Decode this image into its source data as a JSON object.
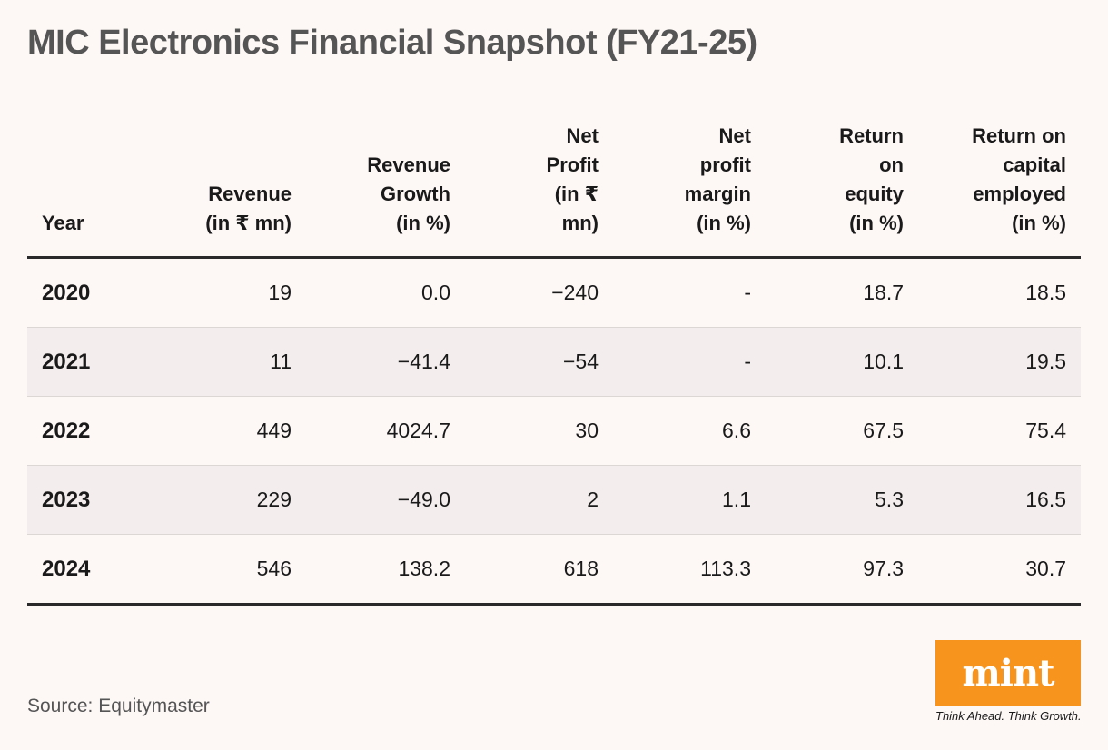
{
  "title": "MIC Electronics Financial Snapshot (FY21-25)",
  "source": "Source: Equitymaster",
  "logo": {
    "text": "mint",
    "tagline": "Think Ahead. Think Growth.",
    "color": "#f7941d"
  },
  "chart_data": {
    "type": "table",
    "title": "MIC Electronics Financial Snapshot (FY21-25)",
    "columns": [
      {
        "lines": [
          "Year"
        ]
      },
      {
        "lines": [
          "Revenue",
          "(in ₹ mn)"
        ]
      },
      {
        "lines": [
          "Revenue",
          "Growth",
          "(in %)"
        ]
      },
      {
        "lines": [
          "Net",
          "Profit",
          "(in ₹",
          "mn)"
        ]
      },
      {
        "lines": [
          "Net",
          "profit",
          "margin",
          "(in %)"
        ]
      },
      {
        "lines": [
          "Return",
          "on",
          "equity",
          "(in %)"
        ]
      },
      {
        "lines": [
          "Return on",
          "capital",
          "employed",
          "(in %)"
        ]
      }
    ],
    "rows": [
      [
        "2020",
        "19",
        "0.0",
        "−240",
        "-",
        "18.7",
        "18.5"
      ],
      [
        "2021",
        "11",
        "−41.4",
        "−54",
        "-",
        "10.1",
        "19.5"
      ],
      [
        "2022",
        "449",
        "4024.7",
        "30",
        "6.6",
        "67.5",
        "75.4"
      ],
      [
        "2023",
        "229",
        "−49.0",
        "2",
        "1.1",
        "5.3",
        "16.5"
      ],
      [
        "2024",
        "546",
        "138.2",
        "618",
        "113.3",
        "97.3",
        "30.7"
      ]
    ]
  }
}
